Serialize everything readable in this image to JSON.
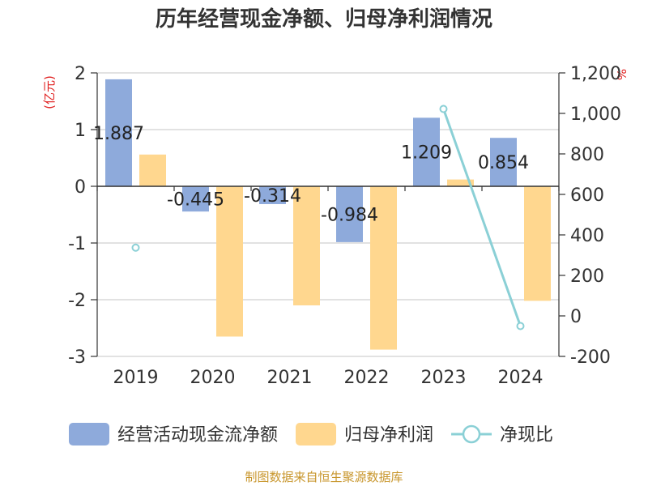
{
  "chart_data": {
    "type": "bar",
    "title": "历年经营现金净额、归母净利润情况",
    "categories": [
      "2019",
      "2020",
      "2021",
      "2022",
      "2023",
      "2024"
    ],
    "left_axis": {
      "unit": "(亿元)",
      "ylim": [
        -3,
        2
      ],
      "ticks": [
        2,
        1,
        0,
        -1,
        -2,
        -3
      ],
      "tick_labels": [
        "2",
        "1",
        "0",
        "-1",
        "-2",
        "-3"
      ]
    },
    "right_axis": {
      "unit": "%",
      "ylim": [
        -200,
        1200
      ],
      "ticks": [
        1200,
        1000,
        800,
        600,
        400,
        200,
        0,
        -200
      ],
      "tick_labels": [
        "1,200",
        "1,000",
        "800",
        "600",
        "400",
        "200",
        "0",
        "-200"
      ]
    },
    "series": [
      {
        "name": "经营活动现金流净额",
        "kind": "bar",
        "axis": "left",
        "color": "#8eaadb",
        "values": [
          1.887,
          -0.445,
          -0.314,
          -0.984,
          1.209,
          0.854
        ],
        "data_labels": [
          "1.887",
          "-0.445",
          "-0.314",
          "-0.984",
          "1.209",
          "0.854"
        ]
      },
      {
        "name": "归母净利润",
        "kind": "bar",
        "axis": "left",
        "color": "#ffd78f",
        "values": [
          0.56,
          -2.65,
          -2.1,
          -2.88,
          0.12,
          -2.02
        ]
      },
      {
        "name": "净现比",
        "kind": "line",
        "axis": "right",
        "color": "#8bd0d6",
        "values": [
          337,
          null,
          null,
          null,
          1022,
          -50
        ]
      }
    ],
    "source": "制图数据来自恒生聚源数据库",
    "colors": {
      "unit_color": "#e02020",
      "source_color": "#c8962c",
      "grid_color": "#d0d0d0",
      "axis_color": "#333333"
    }
  }
}
